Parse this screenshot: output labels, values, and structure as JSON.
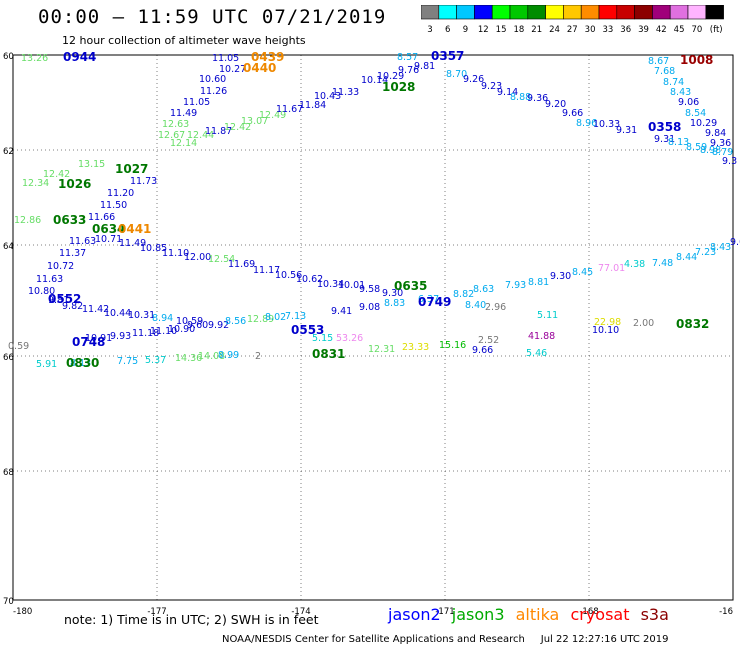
{
  "header": {
    "title": "00:00 – 11:59 UTC 07/21/2019",
    "subtitle": "12 hour collection of altimeter wave heights"
  },
  "color_scale": {
    "unit_label": "(ft)",
    "bins": [
      {
        "label": "3",
        "color": "#808080"
      },
      {
        "label": "6",
        "color": "#00ffff"
      },
      {
        "label": "9",
        "color": "#00c8ff"
      },
      {
        "label": "12",
        "color": "#0000ff"
      },
      {
        "label": "15",
        "color": "#00ff00"
      },
      {
        "label": "18",
        "color": "#00c800"
      },
      {
        "label": "21",
        "color": "#008c00"
      },
      {
        "label": "24",
        "color": "#ffff00"
      },
      {
        "label": "27",
        "color": "#ffc800"
      },
      {
        "label": "30",
        "color": "#ff8c00"
      },
      {
        "label": "33",
        "color": "#ff0000"
      },
      {
        "label": "36",
        "color": "#c80000"
      },
      {
        "label": "39",
        "color": "#8c0000"
      },
      {
        "label": "42",
        "color": "#a0007a"
      },
      {
        "label": "45",
        "color": "#e070e0"
      },
      {
        "label": "70",
        "color": "#ffb4ff"
      },
      {
        "label": "",
        "color": "#000000"
      }
    ]
  },
  "axes": {
    "lon_labels": [
      "-180",
      "-177",
      "-174",
      "-171",
      "-168",
      "-16"
    ],
    "lat_labels": [
      "60",
      "62",
      "64",
      "66",
      "68",
      "70"
    ]
  },
  "observations": [
    {
      "t": "13.26",
      "c": "#66dd66"
    },
    {
      "t": "11.05",
      "c": "#0000cc"
    },
    {
      "t": "10.27",
      "c": "#0000cc"
    },
    {
      "t": "10.60",
      "c": "#0000cc"
    },
    {
      "t": "11.26",
      "c": "#0000cc"
    },
    {
      "t": "11.05",
      "c": "#0000cc"
    },
    {
      "t": "11.49",
      "c": "#0000cc"
    },
    {
      "t": "12.63",
      "c": "#66dd66"
    },
    {
      "t": "12.67",
      "c": "#66dd66"
    },
    {
      "t": "12.44",
      "c": "#66dd66"
    },
    {
      "t": "12.14",
      "c": "#66dd66"
    },
    {
      "t": "11.87",
      "c": "#0000cc"
    },
    {
      "t": "12.42",
      "c": "#66dd66"
    },
    {
      "t": "13.07",
      "c": "#66dd66"
    },
    {
      "t": "12.49",
      "c": "#66dd66"
    },
    {
      "t": "11.67",
      "c": "#0000cc"
    },
    {
      "t": "11.84",
      "c": "#0000cc"
    },
    {
      "t": "10.43",
      "c": "#0000cc"
    },
    {
      "t": "11.33",
      "c": "#0000cc"
    },
    {
      "t": "10.14",
      "c": "#0000cc"
    },
    {
      "t": "10.29",
      "c": "#0000cc"
    },
    {
      "t": "8.57",
      "c": "#00aaee"
    },
    {
      "t": "9.76",
      "c": "#0000cc"
    },
    {
      "t": "9.81",
      "c": "#0000cc"
    },
    {
      "t": "8.70",
      "c": "#00aaee"
    },
    {
      "t": "9.26",
      "c": "#0000cc"
    },
    {
      "t": "9.23",
      "c": "#0000cc"
    },
    {
      "t": "9.14",
      "c": "#0000cc"
    },
    {
      "t": "8.88",
      "c": "#00aaee"
    },
    {
      "t": "9.36",
      "c": "#0000cc"
    },
    {
      "t": "9.20",
      "c": "#0000cc"
    },
    {
      "t": "9.66",
      "c": "#0000cc"
    },
    {
      "t": "8.96",
      "c": "#00aaee"
    },
    {
      "t": "10.33",
      "c": "#0000cc"
    },
    {
      "t": "9.31",
      "c": "#0000cc"
    },
    {
      "t": "9.31",
      "c": "#0000cc"
    },
    {
      "t": "8.13",
      "c": "#00aaee"
    },
    {
      "t": "8.59",
      "c": "#00aaee"
    },
    {
      "t": "8.98",
      "c": "#00aaee"
    },
    {
      "t": "8.67",
      "c": "#00aaee"
    },
    {
      "t": "7.68",
      "c": "#00aaee"
    },
    {
      "t": "8.74",
      "c": "#00aaee"
    },
    {
      "t": "8.43",
      "c": "#00aaee"
    },
    {
      "t": "9.06",
      "c": "#0000cc"
    },
    {
      "t": "8.54",
      "c": "#00aaee"
    },
    {
      "t": "10.29",
      "c": "#0000cc"
    },
    {
      "t": "9.84",
      "c": "#0000cc"
    },
    {
      "t": "9.36",
      "c": "#0000cc"
    },
    {
      "t": "8.79",
      "c": "#00aaee"
    },
    {
      "t": "9.3",
      "c": "#0000cc"
    },
    {
      "t": "12.34",
      "c": "#66dd66"
    },
    {
      "t": "12.42",
      "c": "#66dd66"
    },
    {
      "t": "13.15",
      "c": "#66dd66"
    },
    {
      "t": "11.73",
      "c": "#0000cc"
    },
    {
      "t": "11.20",
      "c": "#0000cc"
    },
    {
      "t": "11.50",
      "c": "#0000cc"
    },
    {
      "t": "11.66",
      "c": "#0000cc"
    },
    {
      "t": "12.86",
      "c": "#66dd66"
    },
    {
      "t": "11.63",
      "c": "#0000cc"
    },
    {
      "t": "11.37",
      "c": "#0000cc"
    },
    {
      "t": "10.72",
      "c": "#0000cc"
    },
    {
      "t": "11.63",
      "c": "#0000cc"
    },
    {
      "t": "10.80",
      "c": "#0000cc"
    },
    {
      "t": "10.71",
      "c": "#0000cc"
    },
    {
      "t": "11.49",
      "c": "#0000cc"
    },
    {
      "t": "10.85",
      "c": "#0000cc"
    },
    {
      "t": "11.10",
      "c": "#0000cc"
    },
    {
      "t": "12.00",
      "c": "#0000cc"
    },
    {
      "t": "12.54",
      "c": "#66dd66"
    },
    {
      "t": "11.69",
      "c": "#0000cc"
    },
    {
      "t": "11.17",
      "c": "#0000cc"
    },
    {
      "t": "10.56",
      "c": "#0000cc"
    },
    {
      "t": "10.62",
      "c": "#0000cc"
    },
    {
      "t": "10.34",
      "c": "#0000cc"
    },
    {
      "t": "10.01",
      "c": "#0000cc"
    },
    {
      "t": "9.58",
      "c": "#0000cc"
    },
    {
      "t": "9.30",
      "c": "#0000cc"
    },
    {
      "t": "8.82",
      "c": "#00aaee"
    },
    {
      "t": "8.63",
      "c": "#00aaee"
    },
    {
      "t": "7.93",
      "c": "#00aaee"
    },
    {
      "t": "8.81",
      "c": "#00aaee"
    },
    {
      "t": "9.30",
      "c": "#0000cc"
    },
    {
      "t": "8.45",
      "c": "#00aaee"
    },
    {
      "t": "77.01",
      "c": "#ee88ee"
    },
    {
      "t": "4.38",
      "c": "#00cccc"
    },
    {
      "t": "7.48",
      "c": "#00aaee"
    },
    {
      "t": "8.44",
      "c": "#00aaee"
    },
    {
      "t": "7.23",
      "c": "#00aaee"
    },
    {
      "t": "8.43",
      "c": "#00aaee"
    },
    {
      "t": "9.07",
      "c": "#0000cc"
    },
    {
      "t": "9.81",
      "c": "#0000cc"
    },
    {
      "t": "9.82",
      "c": "#0000cc"
    },
    {
      "t": "11.42",
      "c": "#0000cc"
    },
    {
      "t": "10.44",
      "c": "#0000cc"
    },
    {
      "t": "10.31",
      "c": "#0000cc"
    },
    {
      "t": "8.94",
      "c": "#00aaee"
    },
    {
      "t": "10.59",
      "c": "#0000cc"
    },
    {
      "t": "9.41",
      "c": "#0000cc"
    },
    {
      "t": "9.08",
      "c": "#0000cc"
    },
    {
      "t": "8.83",
      "c": "#00aaee"
    },
    {
      "t": "6.37",
      "c": "#00aaee"
    },
    {
      "t": "8.40",
      "c": "#00aaee"
    },
    {
      "t": "2.96",
      "c": "#777777"
    },
    {
      "t": "5.11",
      "c": "#00cccc"
    },
    {
      "t": "22.98",
      "c": "#dddd00"
    },
    {
      "t": "2.00",
      "c": "#777777"
    },
    {
      "t": "10.10",
      "c": "#0000cc"
    },
    {
      "t": "10.91",
      "c": "#0000cc"
    },
    {
      "t": "9.93",
      "c": "#0000cc"
    },
    {
      "t": "11.18",
      "c": "#0000cc"
    },
    {
      "t": "11.10",
      "c": "#0000cc"
    },
    {
      "t": "10.90",
      "c": "#0000cc"
    },
    {
      "t": "9.60",
      "c": "#0000cc"
    },
    {
      "t": "9.92",
      "c": "#0000cc"
    },
    {
      "t": "8.56",
      "c": "#00aaee"
    },
    {
      "t": "12.89",
      "c": "#66dd66"
    },
    {
      "t": "8.02",
      "c": "#00aaee"
    },
    {
      "t": "7.13",
      "c": "#00aaee"
    },
    {
      "t": "5.15",
      "c": "#00cccc"
    },
    {
      "t": "53.26",
      "c": "#ee88ee"
    },
    {
      "t": "41.88",
      "c": "#990099"
    },
    {
      "t": "0.59",
      "c": "#777777"
    },
    {
      "t": "12.31",
      "c": "#66dd66"
    },
    {
      "t": "23.33",
      "c": "#dddd00"
    },
    {
      "t": "15.16",
      "c": "#00bb00"
    },
    {
      "t": "2.52",
      "c": "#777777"
    },
    {
      "t": "9.66",
      "c": "#0000cc"
    },
    {
      "t": "5.46",
      "c": "#00cccc"
    },
    {
      "t": "5.91",
      "c": "#00cccc"
    },
    {
      "t": "8.13",
      "c": "#00aaee"
    },
    {
      "t": "7.75",
      "c": "#00aaee"
    },
    {
      "t": "5.37",
      "c": "#00cccc"
    },
    {
      "t": "14.36",
      "c": "#66dd66"
    },
    {
      "t": "14.08",
      "c": "#66dd66"
    },
    {
      "t": "8.99",
      "c": "#00aaee"
    },
    {
      "t": "2",
      "c": "#777777"
    }
  ],
  "time_labels": [
    {
      "t": "0944",
      "c": "#0000cc"
    },
    {
      "t": "0439",
      "c": "#ee8800"
    },
    {
      "t": "0440",
      "c": "#ee8800"
    },
    {
      "t": "0357",
      "c": "#0000cc"
    },
    {
      "t": "1028",
      "c": "#007700"
    },
    {
      "t": "1008",
      "c": "#990000"
    },
    {
      "t": "0358",
      "c": "#0000cc"
    },
    {
      "t": "1027",
      "c": "#007700"
    },
    {
      "t": "1026",
      "c": "#007700"
    },
    {
      "t": "0633",
      "c": "#007700"
    },
    {
      "t": "0634",
      "c": "#007700"
    },
    {
      "t": "0441",
      "c": "#ee8800"
    },
    {
      "t": "0552",
      "c": "#0000cc"
    },
    {
      "t": "0635",
      "c": "#007700"
    },
    {
      "t": "0749",
      "c": "#0000cc"
    },
    {
      "t": "0553",
      "c": "#0000cc"
    },
    {
      "t": "0832",
      "c": "#007700"
    },
    {
      "t": "0748",
      "c": "#0000cc"
    },
    {
      "t": "0831",
      "c": "#007700"
    },
    {
      "t": "0830",
      "c": "#007700"
    }
  ],
  "footer": {
    "note": "note:  1) Time is in UTC;  2) SWH is in feet",
    "satellites": [
      {
        "name": "jason2",
        "color": "#0000ff"
      },
      {
        "name": "jason3",
        "color": "#00aa00"
      },
      {
        "name": "altika",
        "color": "#ff8800"
      },
      {
        "name": "cryosat",
        "color": "#ff0000"
      },
      {
        "name": "s3a",
        "color": "#8b0000"
      }
    ],
    "credit": "NOAA/NESDIS Center for Satellite Applications and Research",
    "timestamp": "Jul 22 12:27:16 UTC 2019"
  }
}
